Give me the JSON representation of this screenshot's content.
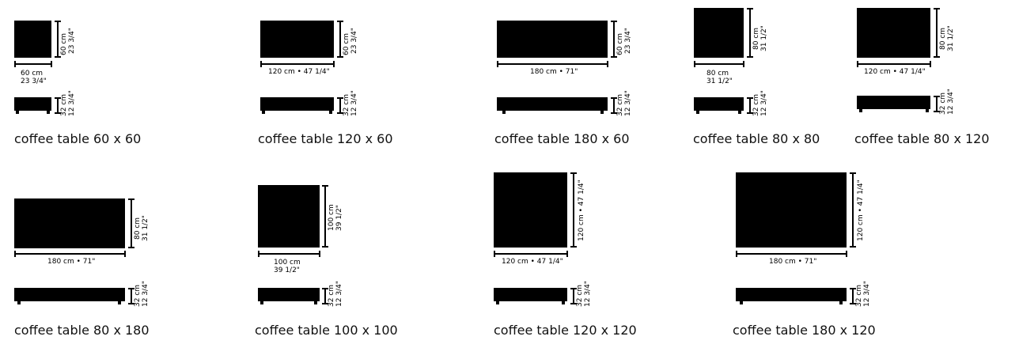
{
  "tables": [
    {
      "caption": "coffee table 60 x 60",
      "width_label": "60 cm",
      "width_label2": "23 3/4\"",
      "depth_label": "60 cm",
      "depth_label2": "23 3/4\"",
      "height_label": "32 cm",
      "height_label2": "12 3/4\""
    },
    {
      "caption": "coffee table 120 x 60",
      "width_label": "120 cm • 47 1/4\"",
      "width_label2": "",
      "depth_label": "60 cm",
      "depth_label2": "23 3/4\"",
      "height_label": "32 cm",
      "height_label2": "12 3/4\""
    },
    {
      "caption": "coffee table 180 x 60",
      "width_label": "180 cm • 71\"",
      "width_label2": "",
      "depth_label": "60 cm",
      "depth_label2": "23 3/4\"",
      "height_label": "32 cm",
      "height_label2": "12 3/4\""
    },
    {
      "caption": "coffee table 80 x 80",
      "width_label": "80 cm",
      "width_label2": "31 1/2\"",
      "depth_label": "80 cm",
      "depth_label2": "31 1/2\"",
      "height_label": "32 cm",
      "height_label2": "12 3/4\""
    },
    {
      "caption": "coffee table 80 x 120",
      "width_label": "120 cm • 47 1/4\"",
      "width_label2": "",
      "depth_label": "80 cm",
      "depth_label2": "31 1/2\"",
      "height_label": "32 cm",
      "height_label2": "12 3/4\""
    },
    {
      "caption": "coffee table 80 x 180",
      "width_label": "180 cm • 71\"",
      "width_label2": "",
      "depth_label": "80 cm",
      "depth_label2": "31 1/2\"",
      "height_label": "32 cm",
      "height_label2": "12 3/4\""
    },
    {
      "caption": "coffee table 100 x 100",
      "width_label": "100 cm",
      "width_label2": "39 1/2\"",
      "depth_label": "100 cm",
      "depth_label2": "39 1/2\"",
      "height_label": "32 cm",
      "height_label2": "12 3/4\""
    },
    {
      "caption": "coffee table 120 x 120",
      "width_label": "120 cm • 47 1/4\"",
      "width_label2": "",
      "depth_label": "120 cm • 47 1/4\"",
      "depth_label2": "",
      "height_label": "32 cm",
      "height_label2": "12 3/4\""
    },
    {
      "caption": "coffee table 180 x 120",
      "width_label": "180 cm • 71\"",
      "width_label2": "",
      "depth_label": "120 cm • 47 1/4\"",
      "depth_label2": "",
      "height_label": "32 cm",
      "height_label2": "12 3/4\""
    }
  ]
}
